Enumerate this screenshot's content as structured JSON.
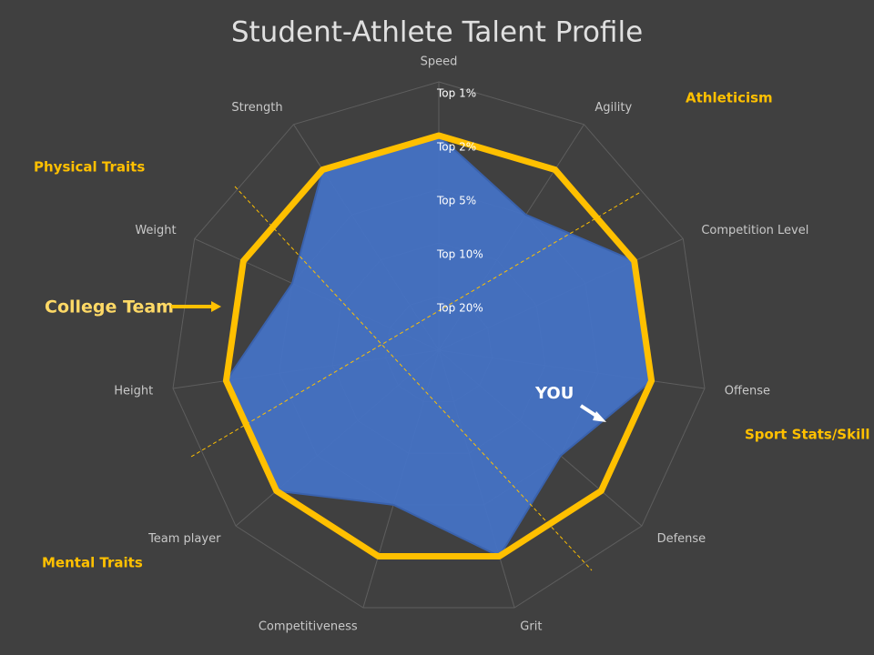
{
  "chart_data": {
    "type": "radar",
    "title": "Student-Athlete Talent Profile",
    "categories": [
      "Speed",
      "Agility",
      "Competition Level",
      "Offense",
      "Defense",
      "Grit",
      "Competitiveness",
      "Team player",
      "Height",
      "Weight",
      "Strength"
    ],
    "rlim": [
      0,
      5
    ],
    "rticks": [
      {
        "value": 1,
        "label": "Top 20%"
      },
      {
        "value": 2,
        "label": "Top 10%"
      },
      {
        "value": 3,
        "label": "Top 5%"
      },
      {
        "value": 4,
        "label": "Top 2%"
      },
      {
        "value": 5,
        "label": "Top 1%"
      }
    ],
    "grid": true,
    "series": [
      {
        "name": "YOU",
        "color": "#4472c4",
        "values": [
          4,
          3,
          4,
          4,
          3,
          4,
          3,
          4,
          4,
          3,
          4
        ]
      },
      {
        "name": "College Team",
        "color": "#ffc000",
        "values": [
          4,
          4,
          4,
          4,
          4,
          4,
          4,
          4,
          4,
          4,
          4
        ]
      }
    ],
    "annotations": [
      "Athleticism",
      "Physical Traits",
      "Sport Stats/Skill",
      "Mental Traits"
    ]
  }
}
